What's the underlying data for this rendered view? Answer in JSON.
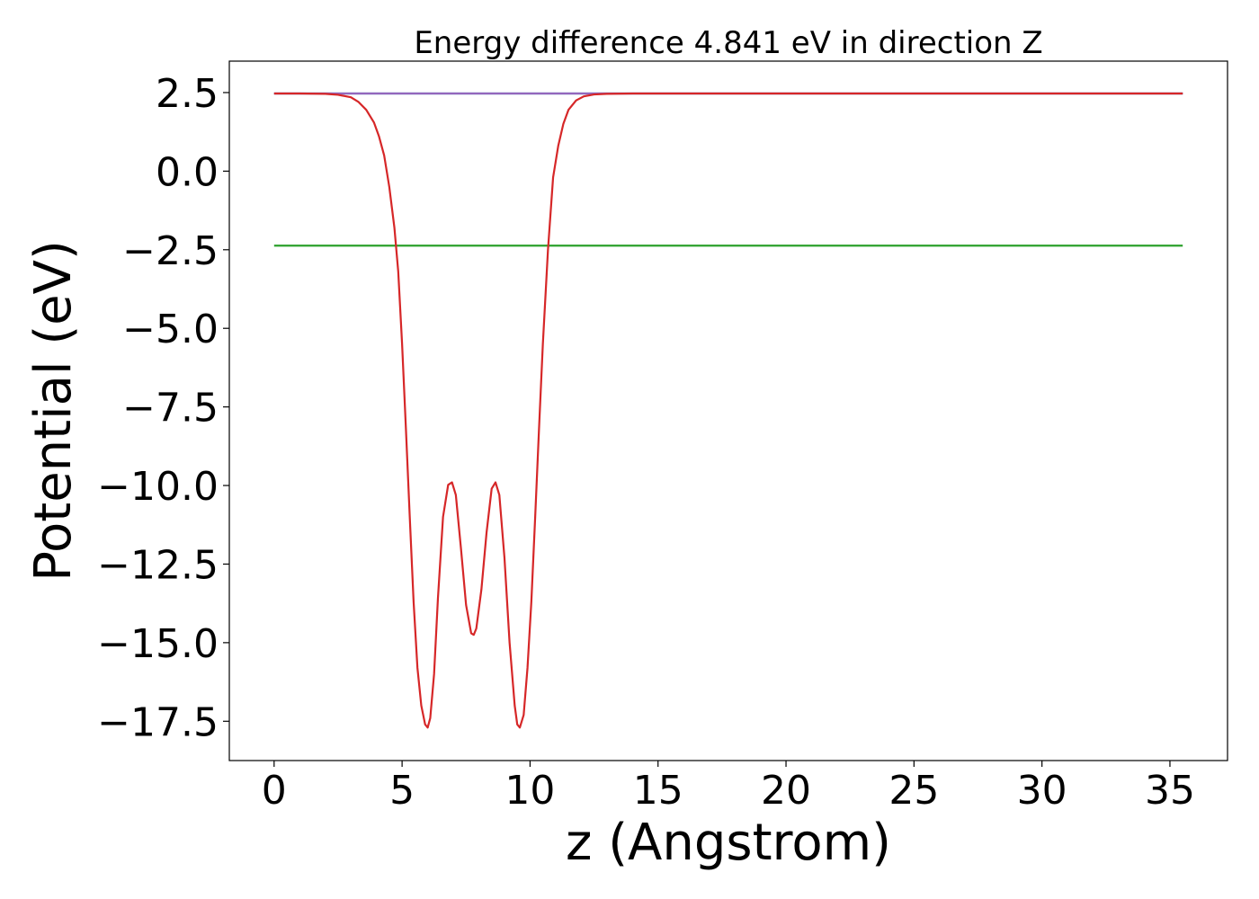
{
  "chart_data": {
    "type": "line",
    "title": "Energy difference 4.841 eV in direction Z",
    "xlabel": "z (Angstrom)",
    "ylabel": "Potential (eV)",
    "xlim": [
      -1.75,
      37.25
    ],
    "ylim": [
      -18.75,
      3.5
    ],
    "xticks": [
      0,
      5,
      10,
      15,
      20,
      25,
      30,
      35
    ],
    "xtick_labels": [
      "0",
      "5",
      "10",
      "15",
      "20",
      "25",
      "30",
      "35"
    ],
    "yticks": [
      2.5,
      0.0,
      -2.5,
      -5.0,
      -7.5,
      -10.0,
      -12.5,
      -15.0,
      -17.5
    ],
    "ytick_labels": [
      "2.5",
      "0.0",
      "−2.5",
      "−5.0",
      "−7.5",
      "−10.0",
      "−12.5",
      "−15.0",
      "−17.5"
    ],
    "grid": false,
    "series": [
      {
        "color": "#1f77b4",
        "x": [
          0,
          35.5
        ],
        "y": [
          2.47,
          2.47
        ]
      },
      {
        "color": "#2ca02c",
        "x": [
          0,
          35.5
        ],
        "y": [
          -2.37,
          -2.37
        ]
      },
      {
        "color": "#9467bd",
        "x": [
          0,
          35.5
        ],
        "y": [
          2.47,
          2.47
        ]
      },
      {
        "color": "#d62728",
        "x": [
          0,
          1,
          2,
          2.5,
          3,
          3.3,
          3.6,
          3.9,
          4.1,
          4.3,
          4.5,
          4.7,
          4.85,
          5.0,
          5.15,
          5.3,
          5.45,
          5.6,
          5.75,
          5.9,
          6.0,
          6.1,
          6.25,
          6.4,
          6.6,
          6.8,
          6.95,
          7.1,
          7.3,
          7.5,
          7.7,
          7.8,
          7.9,
          8.1,
          8.3,
          8.5,
          8.65,
          8.8,
          9.0,
          9.2,
          9.4,
          9.5,
          9.6,
          9.75,
          9.9,
          10.05,
          10.2,
          10.35,
          10.5,
          10.7,
          10.9,
          11.1,
          11.3,
          11.5,
          11.8,
          12.1,
          12.5,
          13.0,
          14.0,
          16.0,
          20.0,
          25.0,
          30.0,
          35.5
        ],
        "y": [
          2.47,
          2.47,
          2.46,
          2.43,
          2.35,
          2.2,
          1.95,
          1.55,
          1.1,
          0.5,
          -0.5,
          -1.8,
          -3.2,
          -5.5,
          -8.2,
          -11.0,
          -13.7,
          -15.8,
          -17.0,
          -17.6,
          -17.7,
          -17.4,
          -16.0,
          -13.6,
          -11.0,
          -9.98,
          -9.9,
          -10.3,
          -12.0,
          -13.8,
          -14.7,
          -14.75,
          -14.55,
          -13.3,
          -11.5,
          -10.1,
          -9.9,
          -10.3,
          -12.3,
          -15.0,
          -17.0,
          -17.6,
          -17.7,
          -17.3,
          -15.8,
          -13.7,
          -11.0,
          -8.2,
          -5.5,
          -2.5,
          -0.2,
          0.8,
          1.5,
          1.95,
          2.25,
          2.38,
          2.44,
          2.46,
          2.47,
          2.47,
          2.47,
          2.47,
          2.47,
          2.47
        ]
      }
    ]
  }
}
